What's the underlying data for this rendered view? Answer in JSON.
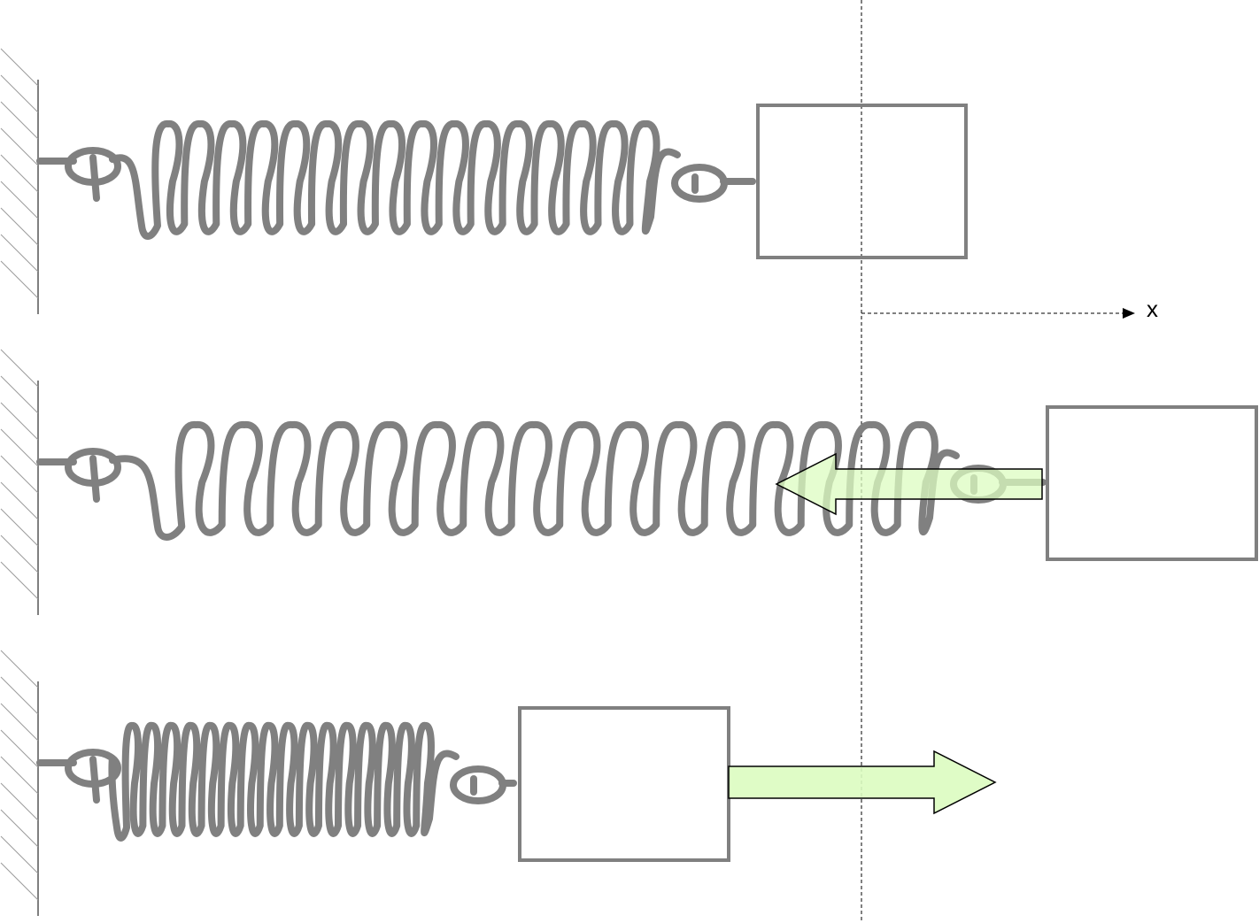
{
  "diagram": {
    "axis_label": "x",
    "colors": {
      "spring": "#808080",
      "block": "#808080",
      "wall": "#808080",
      "hatch": "#9a9a9a",
      "guide": "#000000",
      "force_fill": "#dcfcc0",
      "force_stroke": "#000000"
    },
    "panels": [
      {
        "state": "equilibrium",
        "force_arrow": "none"
      },
      {
        "state": "stretched",
        "force_arrow": "left"
      },
      {
        "state": "compressed",
        "force_arrow": "right"
      }
    ]
  }
}
